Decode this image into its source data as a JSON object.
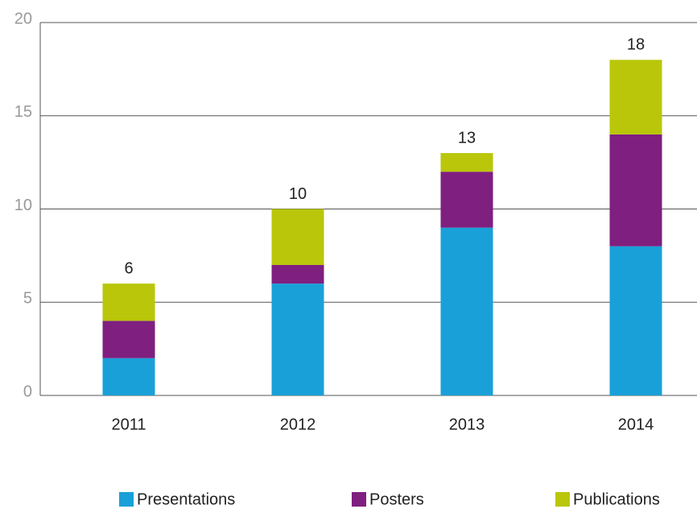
{
  "chart_data": {
    "type": "stacked_bar",
    "categories": [
      "2011",
      "2012",
      "2013",
      "2014"
    ],
    "series": [
      {
        "name": "Presentations",
        "color": "#1aa0d8",
        "values": [
          2,
          6,
          9,
          8
        ]
      },
      {
        "name": "Posters",
        "color": "#7f1f7f",
        "values": [
          2,
          1,
          3,
          6
        ]
      },
      {
        "name": "Publications",
        "color": "#b9c60a",
        "values": [
          2,
          3,
          1,
          4
        ]
      }
    ],
    "totals": [
      6,
      10,
      13,
      18
    ],
    "ylim": [
      0,
      20
    ],
    "yticks": [
      0,
      5,
      10,
      15,
      20
    ],
    "grid": true,
    "legend": "bottom"
  }
}
